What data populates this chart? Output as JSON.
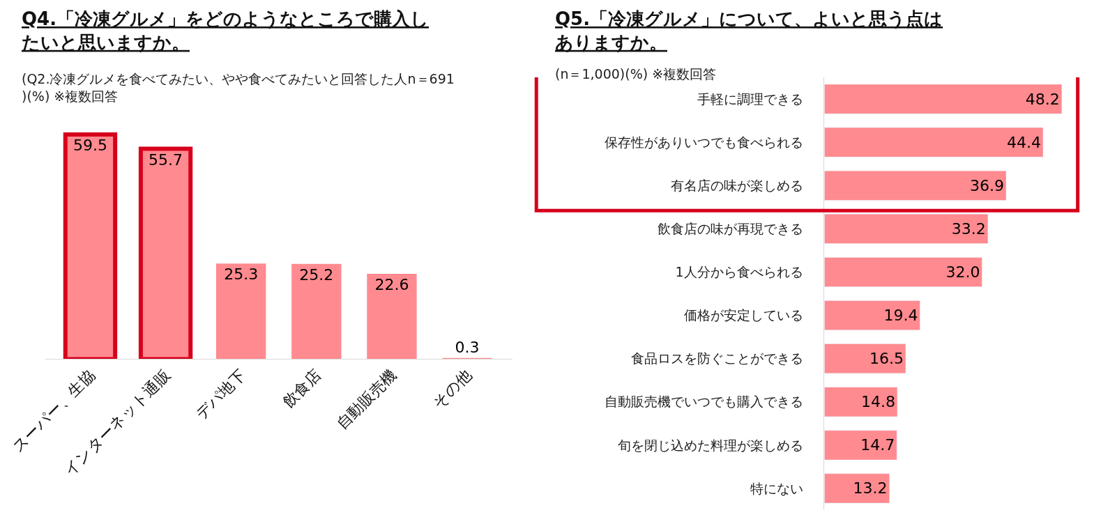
{
  "chart_data": [
    {
      "type": "bar",
      "title": "Q4.「冷凍グルメ」をどのようなところで購入したいと思いますか。",
      "subtitle": "(Q2.冷凍グルメを食べてみたい、やや食べてみたいと回答した人n＝691)(%) ※複数回答",
      "categories": [
        "スーパー、生協",
        "インターネット通販",
        "デパ地下",
        "飲食店",
        "自動販売機",
        "その他"
      ],
      "values": [
        59.5,
        55.7,
        25.3,
        25.2,
        22.6,
        0.3
      ],
      "value_labels": [
        "59.5",
        "55.7",
        "25.3",
        "25.2",
        "22.6",
        "0.3"
      ],
      "color": "#ff8a8f"
    },
    {
      "type": "bar",
      "orientation": "horizontal",
      "title": "Q5.「冷凍グルメ」について、よいと思う点はありますか。",
      "subtitle": "(n＝1,000)(%) ※複数回答",
      "categories": [
        "手軽に調理できる",
        "保存性がありいつでも食べられる",
        "有名店の味が楽しめる",
        "飲食店の味が再現できる",
        "1人分から食べられる",
        "価格が安定している",
        "食品ロスを防ぐことができる",
        "自動販売機でいつでも購入できる",
        "旬を閉じ込めた料理が楽しめる",
        "特にない"
      ],
      "values": [
        48.2,
        44.4,
        36.9,
        33.2,
        32.0,
        19.4,
        16.5,
        14.8,
        14.7,
        13.2
      ],
      "value_labels": [
        "48.2",
        "44.4",
        "36.9",
        "33.2",
        "32.0",
        "19.4",
        "16.5",
        "14.8",
        "14.7",
        "13.2"
      ],
      "color": "#ff8a8f"
    }
  ]
}
